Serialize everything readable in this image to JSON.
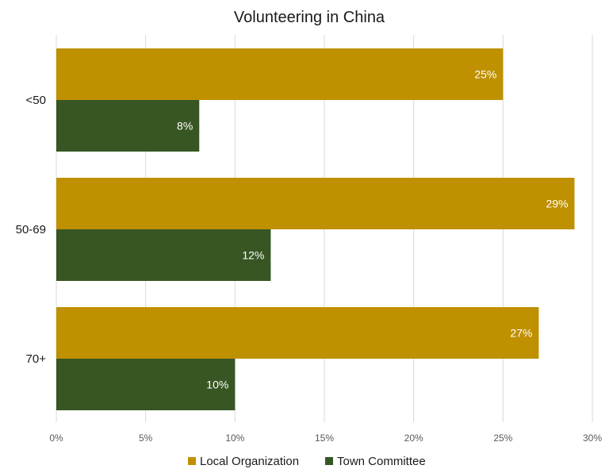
{
  "chart_data": {
    "type": "bar",
    "orientation": "horizontal",
    "title": "Volunteering in China",
    "xlabel": "",
    "ylabel": "",
    "categories": [
      "<50",
      "50-69",
      "70+"
    ],
    "series": [
      {
        "name": "Local Organization",
        "color": "#BF9000",
        "values": [
          25,
          29,
          27
        ],
        "labels": [
          "25%",
          "29%",
          "27%"
        ]
      },
      {
        "name": "Town Committee",
        "color": "#375623",
        "values": [
          8,
          12,
          10
        ],
        "labels": [
          "8%",
          "12%",
          "10%"
        ]
      }
    ],
    "xlim": [
      0,
      30
    ],
    "ticks": [
      0,
      5,
      10,
      15,
      20,
      25,
      30
    ],
    "tick_labels": [
      "0%",
      "5%",
      "10%",
      "15%",
      "20%",
      "25%",
      "30%"
    ],
    "grid": true,
    "legend_position": "bottom"
  }
}
